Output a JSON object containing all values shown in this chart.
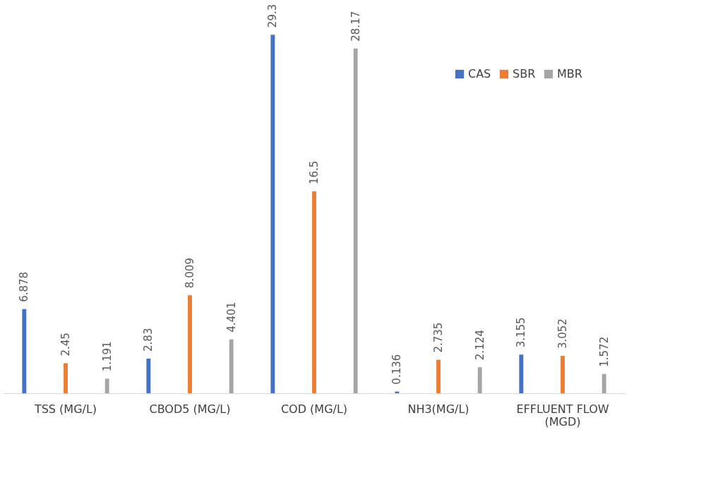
{
  "chart_data": {
    "type": "bar",
    "categories": [
      "TSS (MG/L)",
      "CBOD5 (MG/L)",
      "COD (MG/L)",
      "NH3(MG/L)",
      "EFFLUENT FLOW (MGD)"
    ],
    "series": [
      {
        "name": "CAS",
        "color": "#4472c4",
        "values": [
          6.878,
          2.83,
          29.3,
          0.136,
          3.155
        ]
      },
      {
        "name": "SBR",
        "color": "#ed7d31",
        "values": [
          2.45,
          8.009,
          16.5,
          2.735,
          3.052
        ]
      },
      {
        "name": "MBR",
        "color": "#a5a5a5",
        "values": [
          1.191,
          4.401,
          28.17,
          2.124,
          1.572
        ]
      }
    ],
    "data_labels": true,
    "legend": "top right",
    "grid": false
  }
}
